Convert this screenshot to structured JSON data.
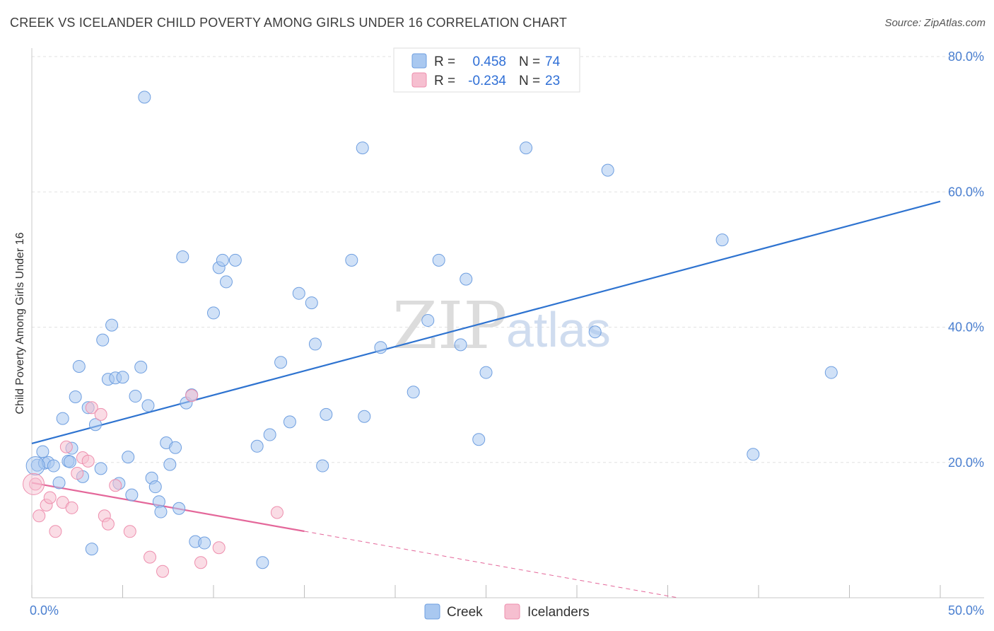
{
  "title": "CREEK VS ICELANDER CHILD POVERTY AMONG GIRLS UNDER 16 CORRELATION CHART",
  "source": "Source: ZipAtlas.com",
  "watermark": {
    "zip": "ZIP",
    "atlas": "atlas"
  },
  "legend": {
    "rows": [
      {
        "r_label": "R =",
        "r_value": "0.458",
        "n_label": "N =",
        "n_value": "74"
      },
      {
        "r_label": "R =",
        "r_value": "-0.234",
        "n_label": "N =",
        "n_value": "23"
      }
    ]
  },
  "bottom_legend": {
    "creek": "Creek",
    "icelanders": "Icelanders"
  },
  "colors": {
    "creek_fill": "#a9c8f0",
    "creek_stroke": "#6f9fe0",
    "creek_line": "#2e73d0",
    "ice_fill": "#f6bfd0",
    "ice_stroke": "#ee8fae",
    "ice_line": "#e4679a",
    "tick": "#4a7fd0",
    "grid": "#e2e2e2"
  },
  "chart_data": {
    "type": "scatter",
    "title": "CREEK VS ICELANDER CHILD POVERTY AMONG GIRLS UNDER 16 CORRELATION CHART",
    "xlabel": "",
    "ylabel": "Child Poverty Among Girls Under 16",
    "xlim": [
      0,
      50
    ],
    "ylim": [
      0,
      80
    ],
    "x_tick_labels": [
      "0.0%",
      "50.0%"
    ],
    "y_tick_labels": [
      "20.0%",
      "40.0%",
      "60.0%",
      "80.0%"
    ],
    "y_ticks": [
      20,
      40,
      60,
      80
    ],
    "grid": true,
    "series": [
      {
        "name": "Creek",
        "r": 0.458,
        "n": 74,
        "trend": {
          "x": [
            0,
            50
          ],
          "y": [
            22.8,
            58.6
          ],
          "solid_to": 50
        },
        "points": [
          [
            0.3,
            19.6
          ],
          [
            0.6,
            21.6
          ],
          [
            0.7,
            19.9
          ],
          [
            0.9,
            20.0
          ],
          [
            1.2,
            19.5
          ],
          [
            1.5,
            17.0
          ],
          [
            1.7,
            26.5
          ],
          [
            2.0,
            20.2
          ],
          [
            2.2,
            22.1
          ],
          [
            2.4,
            29.7
          ],
          [
            2.6,
            34.2
          ],
          [
            2.8,
            17.9
          ],
          [
            3.1,
            28.1
          ],
          [
            3.3,
            7.2
          ],
          [
            3.5,
            25.6
          ],
          [
            3.8,
            19.1
          ],
          [
            3.9,
            38.1
          ],
          [
            4.2,
            32.3
          ],
          [
            4.4,
            40.3
          ],
          [
            4.6,
            32.5
          ],
          [
            4.8,
            16.9
          ],
          [
            5.3,
            20.8
          ],
          [
            5.5,
            15.2
          ],
          [
            5.7,
            29.8
          ],
          [
            6.0,
            34.1
          ],
          [
            6.2,
            74.0
          ],
          [
            6.4,
            28.4
          ],
          [
            6.6,
            17.7
          ],
          [
            6.8,
            16.4
          ],
          [
            7.0,
            14.2
          ],
          [
            7.1,
            12.7
          ],
          [
            7.4,
            22.9
          ],
          [
            7.6,
            19.7
          ],
          [
            7.9,
            22.2
          ],
          [
            8.1,
            13.2
          ],
          [
            8.3,
            50.4
          ],
          [
            8.5,
            28.8
          ],
          [
            8.8,
            30.0
          ],
          [
            9.0,
            8.3
          ],
          [
            9.5,
            8.1
          ],
          [
            10.0,
            42.1
          ],
          [
            10.3,
            48.8
          ],
          [
            10.5,
            49.9
          ],
          [
            10.7,
            46.7
          ],
          [
            11.2,
            49.9
          ],
          [
            12.4,
            22.4
          ],
          [
            12.7,
            5.2
          ],
          [
            13.1,
            24.1
          ],
          [
            13.7,
            34.8
          ],
          [
            14.2,
            26.0
          ],
          [
            14.7,
            45.0
          ],
          [
            15.4,
            43.6
          ],
          [
            15.6,
            37.5
          ],
          [
            16.0,
            19.5
          ],
          [
            16.2,
            27.1
          ],
          [
            17.6,
            49.9
          ],
          [
            18.2,
            66.5
          ],
          [
            18.3,
            26.8
          ],
          [
            19.2,
            37.0
          ],
          [
            21.0,
            30.4
          ],
          [
            21.8,
            41.0
          ],
          [
            22.4,
            49.9
          ],
          [
            23.6,
            37.4
          ],
          [
            23.9,
            47.1
          ],
          [
            24.6,
            23.4
          ],
          [
            25.0,
            33.3
          ],
          [
            27.2,
            66.5
          ],
          [
            31.0,
            39.3
          ],
          [
            31.7,
            63.2
          ],
          [
            38.0,
            52.9
          ],
          [
            39.7,
            21.2
          ],
          [
            44.0,
            33.3
          ],
          [
            5.0,
            32.6
          ],
          [
            2.1,
            20.1
          ]
        ]
      },
      {
        "name": "Icelanders",
        "r": -0.234,
        "n": 23,
        "trend": {
          "x": [
            0,
            50
          ],
          "y": [
            17.0,
            -6.9
          ],
          "solid_to": 15
        },
        "points": [
          [
            0.2,
            16.8
          ],
          [
            0.4,
            12.1
          ],
          [
            0.8,
            13.7
          ],
          [
            1.0,
            14.8
          ],
          [
            1.3,
            9.8
          ],
          [
            1.7,
            14.1
          ],
          [
            1.9,
            22.3
          ],
          [
            2.2,
            13.3
          ],
          [
            2.5,
            18.4
          ],
          [
            2.8,
            20.7
          ],
          [
            3.1,
            20.2
          ],
          [
            3.3,
            28.1
          ],
          [
            3.8,
            27.1
          ],
          [
            4.0,
            12.1
          ],
          [
            4.2,
            10.9
          ],
          [
            4.6,
            16.6
          ],
          [
            5.4,
            9.8
          ],
          [
            6.5,
            6.0
          ],
          [
            7.2,
            3.9
          ],
          [
            8.8,
            29.9
          ],
          [
            9.3,
            5.2
          ],
          [
            10.3,
            7.4
          ],
          [
            13.5,
            12.6
          ]
        ]
      }
    ]
  }
}
